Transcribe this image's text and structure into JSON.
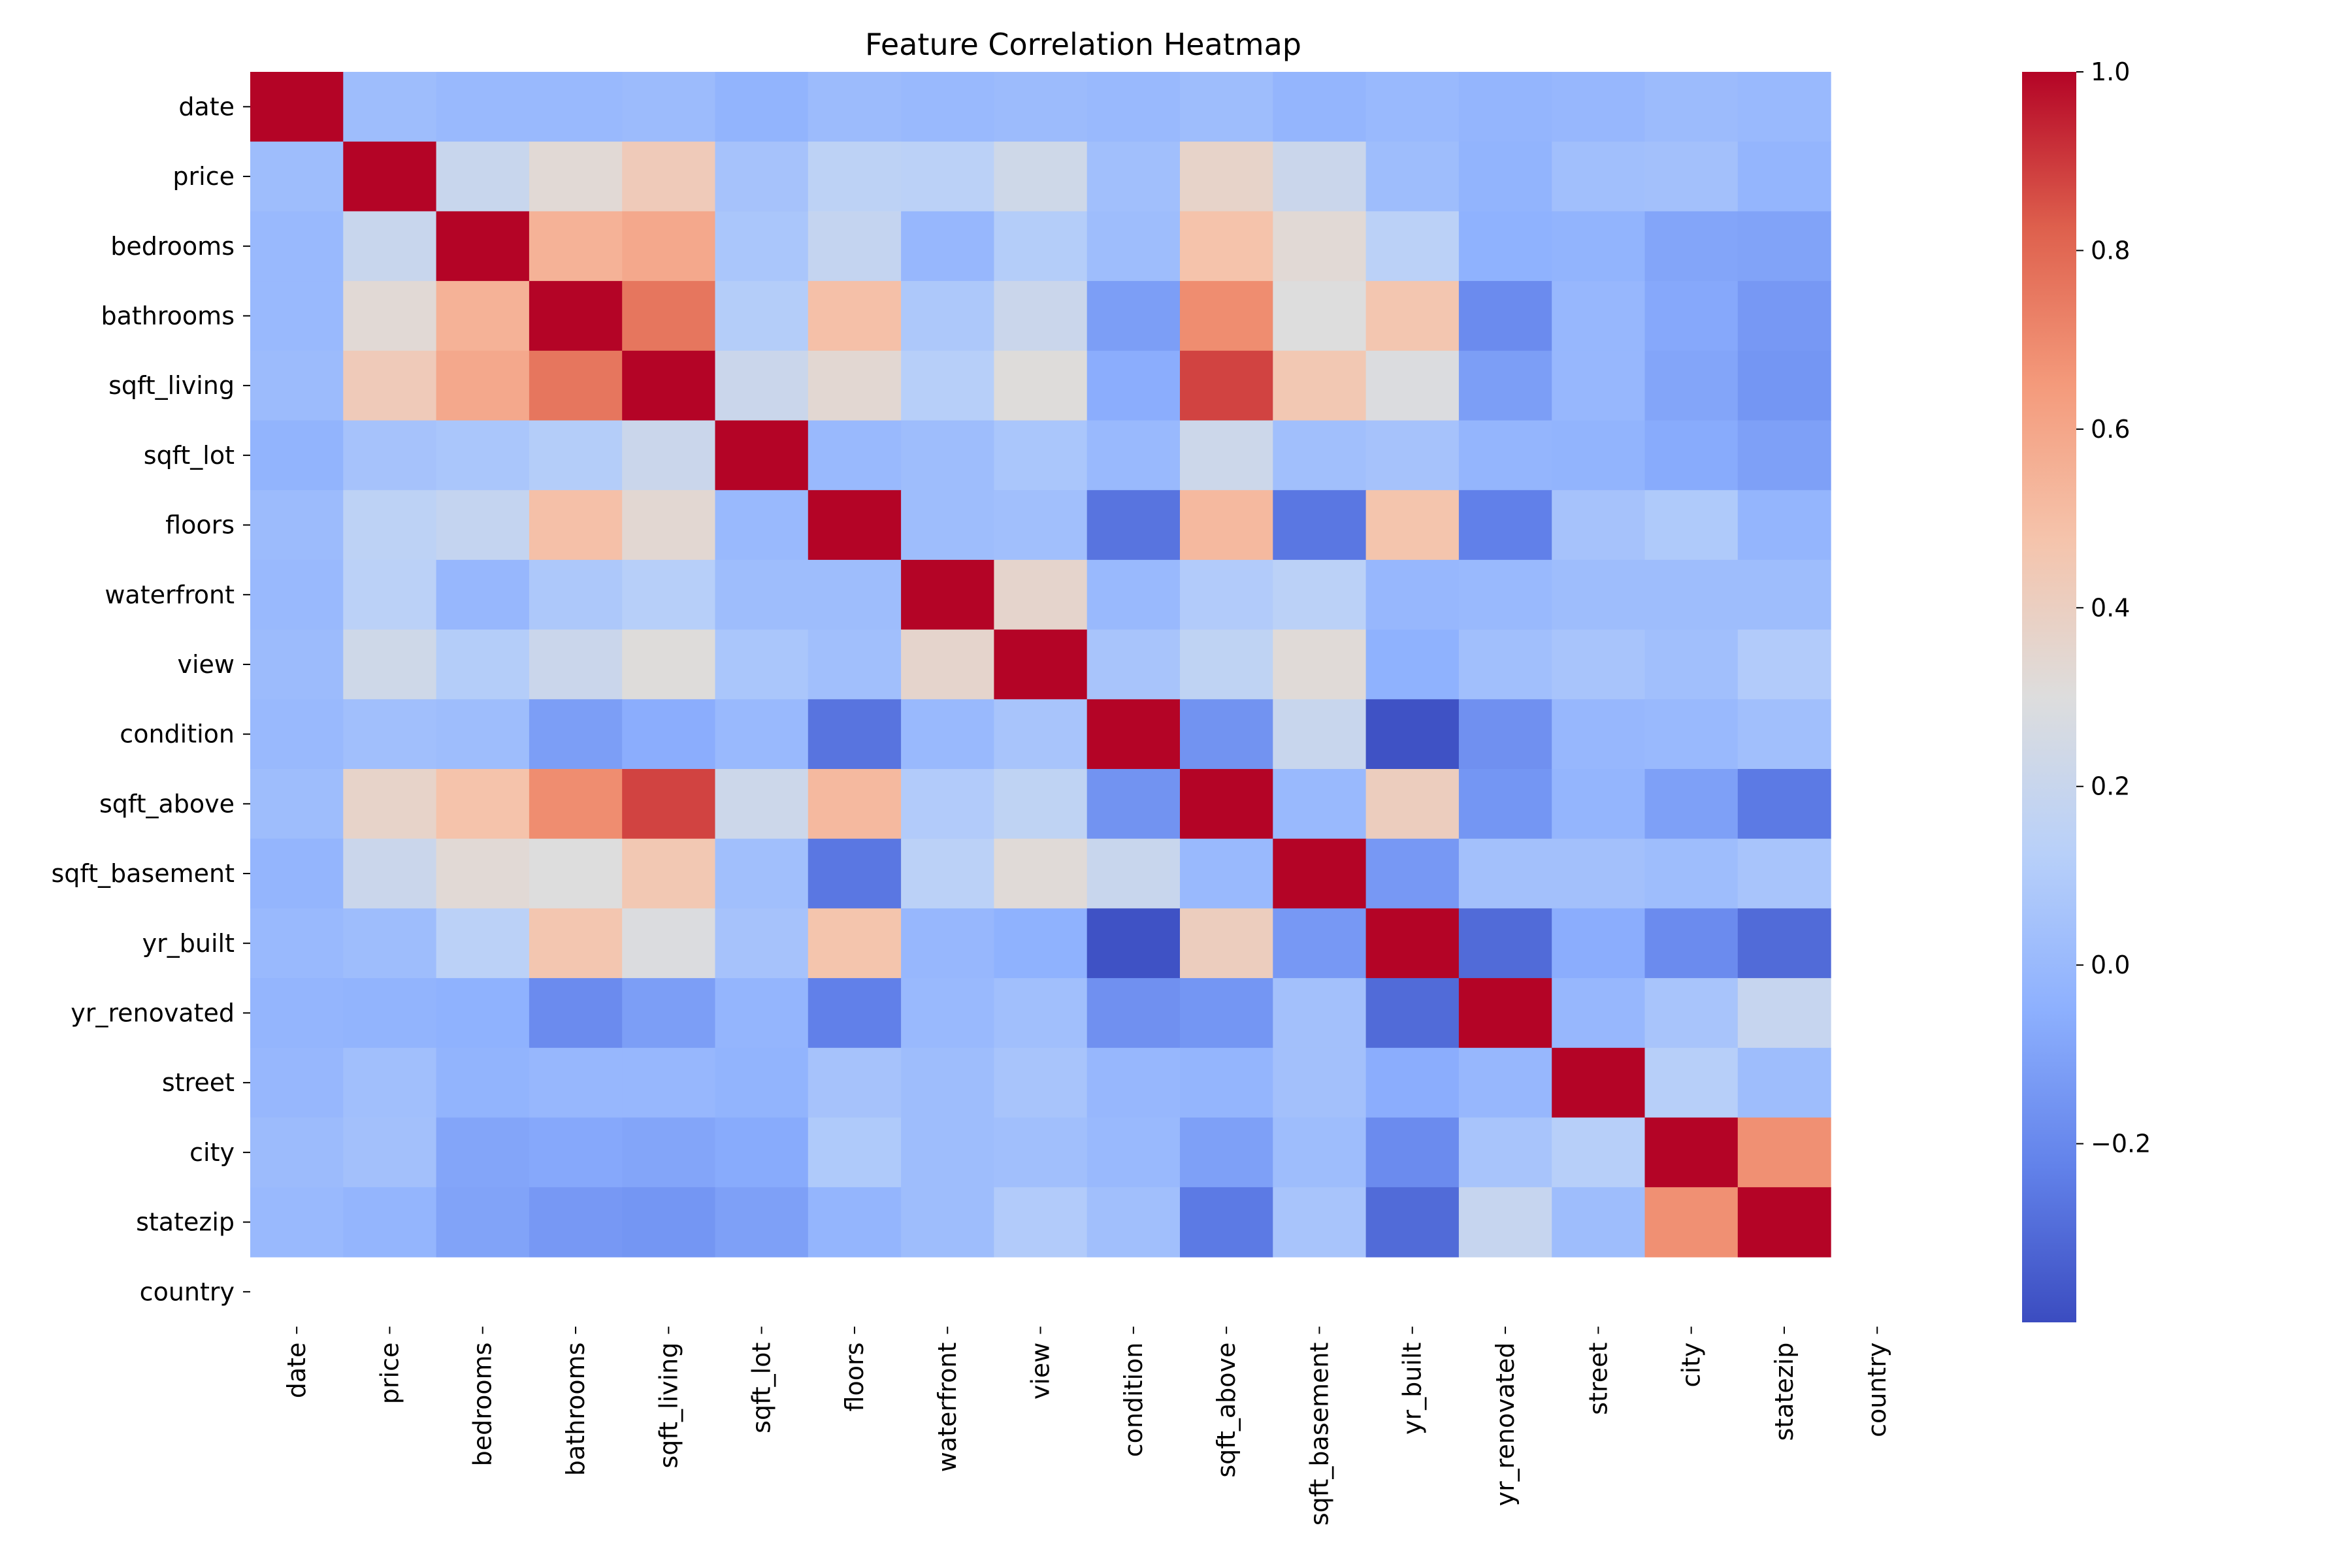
{
  "chart_data": {
    "type": "heatmap",
    "title": "Feature Correlation Heatmap",
    "xlabel": "",
    "ylabel": "",
    "labels": [
      "date",
      "price",
      "bedrooms",
      "bathrooms",
      "sqft_living",
      "sqft_lot",
      "floors",
      "waterfront",
      "view",
      "condition",
      "sqft_above",
      "sqft_basement",
      "yr_built",
      "yr_renovated",
      "street",
      "city",
      "statezip",
      "country"
    ],
    "matrix": [
      [
        1.0,
        0.02,
        0.0,
        0.0,
        0.01,
        -0.03,
        0.01,
        0.0,
        0.01,
        0.0,
        0.02,
        -0.02,
        0.0,
        -0.02,
        -0.01,
        0.01,
        0.0,
        null
      ],
      [
        0.02,
        1.0,
        0.2,
        0.33,
        0.43,
        0.05,
        0.15,
        0.14,
        0.23,
        0.03,
        0.37,
        0.21,
        0.02,
        -0.03,
        0.03,
        0.04,
        -0.02,
        null
      ],
      [
        0.0,
        0.2,
        1.0,
        0.55,
        0.59,
        0.07,
        0.18,
        -0.01,
        0.11,
        0.02,
        0.48,
        0.33,
        0.14,
        -0.04,
        -0.03,
        -0.09,
        -0.1,
        null
      ],
      [
        0.0,
        0.33,
        0.55,
        1.0,
        0.76,
        0.11,
        0.49,
        0.08,
        0.21,
        -0.12,
        0.69,
        0.3,
        0.46,
        -0.19,
        -0.01,
        -0.08,
        -0.14,
        null
      ],
      [
        0.01,
        0.43,
        0.59,
        0.76,
        1.0,
        0.21,
        0.34,
        0.12,
        0.31,
        -0.06,
        0.88,
        0.45,
        0.29,
        -0.12,
        -0.01,
        -0.09,
        -0.15,
        null
      ],
      [
        -0.03,
        0.05,
        0.07,
        0.11,
        0.21,
        1.0,
        0.0,
        0.02,
        0.07,
        0.0,
        0.22,
        0.03,
        0.05,
        -0.02,
        -0.03,
        -0.07,
        -0.11,
        null
      ],
      [
        0.01,
        0.15,
        0.18,
        0.49,
        0.34,
        0.0,
        1.0,
        0.02,
        0.03,
        -0.27,
        0.52,
        -0.26,
        0.47,
        -0.23,
        0.05,
        0.09,
        -0.02,
        null
      ],
      [
        0.0,
        0.14,
        -0.01,
        0.08,
        0.12,
        0.02,
        0.02,
        1.0,
        0.36,
        0.0,
        0.1,
        0.14,
        -0.01,
        0.0,
        0.02,
        0.02,
        0.02,
        null
      ],
      [
        0.01,
        0.23,
        0.11,
        0.21,
        0.31,
        0.07,
        0.03,
        0.36,
        1.0,
        0.06,
        0.16,
        0.32,
        -0.04,
        0.03,
        0.06,
        0.03,
        0.1,
        null
      ],
      [
        0.0,
        0.03,
        0.02,
        -0.12,
        -0.06,
        0.0,
        -0.27,
        0.0,
        0.06,
        1.0,
        -0.16,
        0.2,
        -0.38,
        -0.17,
        -0.01,
        0.0,
        0.03,
        null
      ],
      [
        0.02,
        0.37,
        0.48,
        0.69,
        0.88,
        0.22,
        0.52,
        0.1,
        0.16,
        -0.16,
        1.0,
        0.0,
        0.41,
        -0.15,
        -0.02,
        -0.11,
        -0.25,
        null
      ],
      [
        -0.02,
        0.21,
        0.33,
        0.3,
        0.45,
        0.03,
        -0.26,
        0.14,
        0.32,
        0.2,
        0.0,
        1.0,
        -0.14,
        0.04,
        0.04,
        0.02,
        0.06,
        null
      ],
      [
        0.0,
        0.02,
        0.14,
        0.46,
        0.29,
        0.05,
        0.47,
        -0.01,
        -0.04,
        -0.38,
        0.41,
        -0.14,
        1.0,
        -0.3,
        -0.06,
        -0.19,
        -0.3,
        null
      ],
      [
        -0.02,
        -0.03,
        -0.04,
        -0.19,
        -0.12,
        -0.02,
        -0.23,
        0.0,
        0.03,
        -0.17,
        -0.15,
        0.04,
        -0.3,
        1.0,
        -0.01,
        0.06,
        0.19,
        null
      ],
      [
        -0.01,
        0.03,
        -0.03,
        -0.01,
        -0.01,
        -0.03,
        0.05,
        0.02,
        0.06,
        -0.01,
        -0.02,
        0.04,
        -0.06,
        -0.01,
        1.0,
        0.12,
        0.02,
        null
      ],
      [
        0.01,
        0.04,
        -0.09,
        -0.08,
        -0.09,
        -0.07,
        0.09,
        0.02,
        0.03,
        0.0,
        -0.11,
        0.02,
        -0.19,
        0.06,
        0.12,
        1.0,
        0.68,
        null
      ],
      [
        0.0,
        -0.02,
        -0.1,
        -0.14,
        -0.15,
        -0.11,
        -0.02,
        0.02,
        0.1,
        0.03,
        -0.25,
        0.06,
        -0.3,
        0.19,
        0.02,
        0.68,
        1.0,
        null
      ],
      [
        null,
        null,
        null,
        null,
        null,
        null,
        null,
        null,
        null,
        null,
        null,
        null,
        null,
        null,
        null,
        null,
        null,
        null
      ]
    ],
    "colormap": "coolwarm",
    "colorbar": {
      "range": [
        -0.4,
        1.0
      ],
      "ticks": [
        1.0,
        0.8,
        0.6,
        0.4,
        0.2,
        0.0,
        -0.2
      ],
      "tick_labels": [
        "1.0",
        "0.8",
        "0.6",
        "0.4",
        "0.2",
        "0.0",
        "−0.2"
      ]
    },
    "colormap_stops": [
      "#3b4cc0",
      "#6282ea",
      "#8db0fe",
      "#b8d0f9",
      "#dddddd",
      "#f5c4ac",
      "#f49a7b",
      "#de604d",
      "#b40426"
    ],
    "grid": false,
    "legend": "colorbar-right"
  }
}
